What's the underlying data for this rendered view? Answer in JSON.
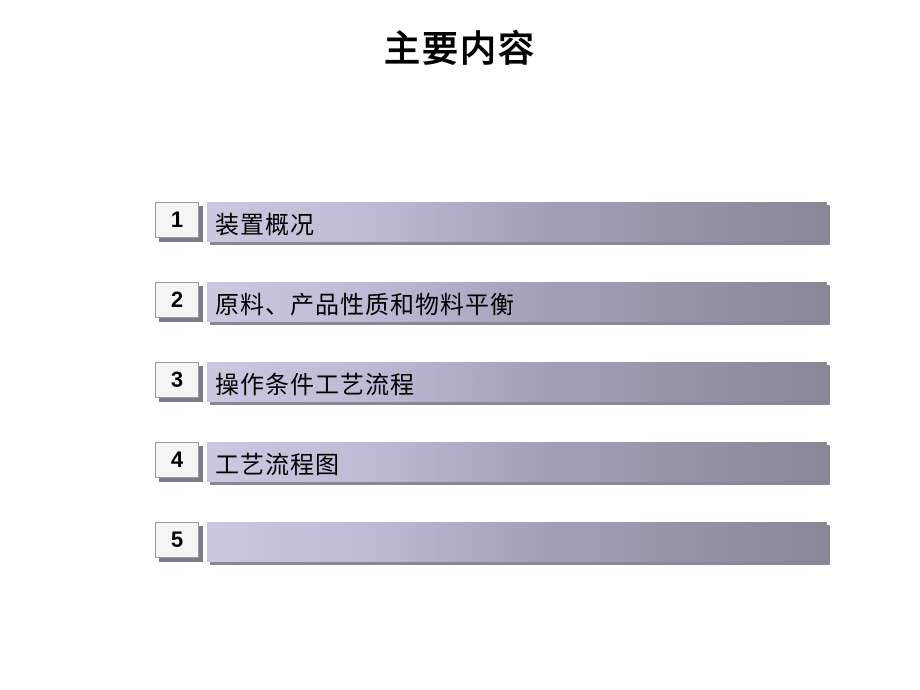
{
  "title": "主要内容",
  "items": [
    {
      "num": "1",
      "label": "装置概况"
    },
    {
      "num": "2",
      "label": "原料、产品性质和物料平衡"
    },
    {
      "num": "3",
      "label": "操作条件工艺流程"
    },
    {
      "num": "4",
      "label": "工艺流程图"
    },
    {
      "num": "5",
      "label": ""
    }
  ],
  "colors": {
    "background": "#ffffff",
    "numbox_bg": "#f5f5f5",
    "shadow": "#7a7a8a",
    "bar_gradient_start": "#c9c9e0",
    "bar_gradient_end": "#888898",
    "text": "#000000"
  },
  "typography": {
    "title_fontsize": 36,
    "item_fontsize": 24,
    "num_fontsize": 22
  }
}
